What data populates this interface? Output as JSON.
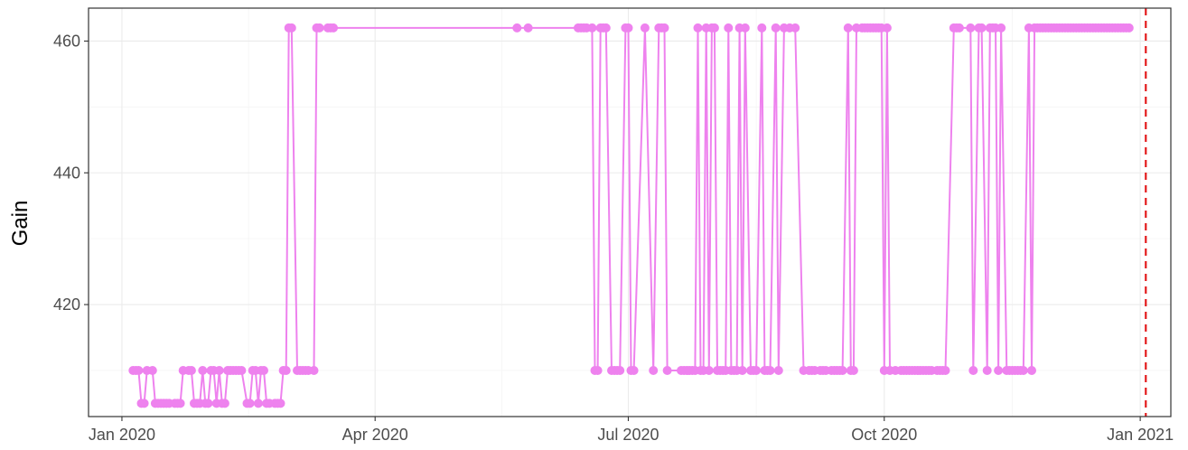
{
  "chart_data": {
    "type": "line",
    "title": "",
    "xlabel": "",
    "ylabel": "Gain",
    "x_ticks": [
      "Jan 2020",
      "Apr 2020",
      "Jul 2020",
      "Oct 2020",
      "Jan 2021"
    ],
    "y_ticks": [
      "420",
      "440",
      "460"
    ],
    "xlim": [
      "2019-12-20",
      "2021-01-12"
    ],
    "ylim": [
      403,
      465
    ],
    "grid": true,
    "series": [
      {
        "color": "#ee82ee",
        "x": [
          "2020-01-05",
          "2020-01-06",
          "2020-01-07",
          "2020-01-08",
          "2020-01-09",
          "2020-01-10",
          "2020-01-12",
          "2020-01-13",
          "2020-01-14",
          "2020-01-15",
          "2020-01-16",
          "2020-01-17",
          "2020-01-18",
          "2020-01-20",
          "2020-01-21",
          "2020-01-22",
          "2020-01-23",
          "2020-01-25",
          "2020-01-26",
          "2020-01-27",
          "2020-01-28",
          "2020-01-29",
          "2020-01-30",
          "2020-01-31",
          "2020-02-01",
          "2020-02-02",
          "2020-02-03",
          "2020-02-04",
          "2020-02-05",
          "2020-02-06",
          "2020-02-07",
          "2020-02-08",
          "2020-02-09",
          "2020-02-10",
          "2020-02-11",
          "2020-02-12",
          "2020-02-13",
          "2020-02-15",
          "2020-02-16",
          "2020-02-17",
          "2020-02-18",
          "2020-02-19",
          "2020-02-20",
          "2020-02-21",
          "2020-02-22",
          "2020-02-23",
          "2020-02-25",
          "2020-02-26",
          "2020-02-27",
          "2020-02-28",
          "2020-02-29",
          "2020-03-01",
          "2020-03-02",
          "2020-03-04",
          "2020-03-05",
          "2020-03-06",
          "2020-03-07",
          "2020-03-08",
          "2020-03-10",
          "2020-03-11",
          "2020-03-12",
          "2020-03-15",
          "2020-03-16",
          "2020-03-17",
          "2020-05-22",
          "2020-05-26",
          "2020-06-13",
          "2020-06-14",
          "2020-06-15",
          "2020-06-16",
          "2020-06-18",
          "2020-06-19",
          "2020-06-20",
          "2020-06-21",
          "2020-06-22",
          "2020-06-23",
          "2020-06-25",
          "2020-06-26",
          "2020-06-27",
          "2020-06-28",
          "2020-06-30",
          "2020-07-01",
          "2020-07-02",
          "2020-07-03",
          "2020-07-07",
          "2020-07-10",
          "2020-07-12",
          "2020-07-13",
          "2020-07-14",
          "2020-07-15",
          "2020-07-20",
          "2020-07-21",
          "2020-07-22",
          "2020-07-23",
          "2020-07-24",
          "2020-07-25",
          "2020-07-26",
          "2020-07-27",
          "2020-07-28",
          "2020-07-29",
          "2020-07-30",
          "2020-07-31",
          "2020-08-01",
          "2020-08-02",
          "2020-08-03",
          "2020-08-04",
          "2020-08-05",
          "2020-08-06",
          "2020-08-07",
          "2020-08-08",
          "2020-08-09",
          "2020-08-10",
          "2020-08-11",
          "2020-08-12",
          "2020-08-14",
          "2020-08-15",
          "2020-08-16",
          "2020-08-18",
          "2020-08-19",
          "2020-08-20",
          "2020-08-21",
          "2020-08-23",
          "2020-08-24",
          "2020-08-26",
          "2020-08-28",
          "2020-08-30",
          "2020-09-02",
          "2020-09-04",
          "2020-09-05",
          "2020-09-06",
          "2020-09-08",
          "2020-09-09",
          "2020-09-10",
          "2020-09-12",
          "2020-09-13",
          "2020-09-14",
          "2020-09-15",
          "2020-09-16",
          "2020-09-18",
          "2020-09-19",
          "2020-09-20",
          "2020-09-21",
          "2020-09-23",
          "2020-09-24",
          "2020-09-25",
          "2020-09-26",
          "2020-09-27",
          "2020-09-28",
          "2020-09-29",
          "2020-09-30",
          "2020-10-01",
          "2020-10-02",
          "2020-10-03",
          "2020-10-05",
          "2020-10-07",
          "2020-10-08",
          "2020-10-09",
          "2020-10-10",
          "2020-10-11",
          "2020-10-12",
          "2020-10-13",
          "2020-10-14",
          "2020-10-15",
          "2020-10-16",
          "2020-10-17",
          "2020-10-18",
          "2020-10-20",
          "2020-10-21",
          "2020-10-22",
          "2020-10-23",
          "2020-10-26",
          "2020-10-27",
          "2020-10-28",
          "2020-11-01",
          "2020-11-02",
          "2020-11-04",
          "2020-11-05",
          "2020-11-07",
          "2020-11-08",
          "2020-11-09",
          "2020-11-10",
          "2020-11-11",
          "2020-11-12",
          "2020-11-14",
          "2020-11-15",
          "2020-11-16",
          "2020-11-17",
          "2020-11-18",
          "2020-11-19",
          "2020-11-20",
          "2020-11-22",
          "2020-11-23",
          "2020-11-24",
          "2020-11-25",
          "2020-11-26",
          "2020-11-27",
          "2020-11-28",
          "2020-11-29",
          "2020-11-30",
          "2020-12-01",
          "2020-12-02",
          "2020-12-03",
          "2020-12-04",
          "2020-12-05",
          "2020-12-06",
          "2020-12-07",
          "2020-12-08",
          "2020-12-09",
          "2020-12-10",
          "2020-12-11",
          "2020-12-12",
          "2020-12-13",
          "2020-12-14",
          "2020-12-15",
          "2020-12-16",
          "2020-12-17",
          "2020-12-18",
          "2020-12-19",
          "2020-12-20",
          "2020-12-21",
          "2020-12-22",
          "2020-12-23",
          "2020-12-24",
          "2020-12-25",
          "2020-12-26",
          "2020-12-27",
          "2020-12-28"
        ],
        "y": [
          410,
          410,
          410,
          405,
          405,
          410,
          410,
          405,
          405,
          405,
          405,
          405,
          405,
          405,
          405,
          405,
          410,
          410,
          410,
          405,
          405,
          405,
          410,
          405,
          405,
          410,
          410,
          405,
          410,
          405,
          405,
          410,
          410,
          410,
          410,
          410,
          410,
          405,
          405,
          410,
          410,
          405,
          410,
          410,
          405,
          405,
          405,
          405,
          405,
          410,
          410,
          462,
          462,
          410,
          410,
          410,
          410,
          410,
          410,
          462,
          462,
          462,
          462,
          462,
          462,
          462,
          462,
          462,
          462,
          462,
          462,
          410,
          410,
          462,
          462,
          462,
          410,
          410,
          410,
          410,
          462,
          462,
          410,
          410,
          462,
          410,
          462,
          462,
          462,
          410,
          410,
          410,
          410,
          410,
          410,
          410,
          462,
          410,
          410,
          462,
          410,
          462,
          462,
          410,
          410,
          410,
          410,
          462,
          410,
          410,
          410,
          462,
          410,
          462,
          410,
          410,
          410,
          462,
          410,
          410,
          410,
          462,
          410,
          462,
          462,
          462,
          410,
          410,
          410,
          410,
          410,
          410,
          410,
          410,
          410,
          410,
          410,
          410,
          462,
          410,
          410,
          462,
          462,
          462,
          462,
          462,
          462,
          462,
          462,
          462,
          410,
          462,
          410,
          410,
          410,
          410,
          410,
          410,
          410,
          410,
          410,
          410,
          410,
          410,
          410,
          410,
          410,
          410,
          410,
          410,
          462,
          462,
          462,
          462,
          410,
          462,
          462,
          410,
          462,
          462,
          462,
          410,
          462,
          410,
          410,
          410,
          410,
          410,
          410,
          410,
          462,
          410,
          462,
          462,
          462,
          462,
          462,
          462,
          462,
          462,
          462,
          462,
          462,
          462,
          462,
          462,
          462,
          462,
          462,
          462,
          462,
          462,
          462,
          462,
          462,
          462,
          462,
          462,
          462,
          462,
          462,
          462,
          462,
          462,
          462,
          462,
          462
        ]
      }
    ],
    "reference_line": {
      "x": "2021-01-03",
      "color": "#e31a1c",
      "style": "dashed"
    }
  }
}
